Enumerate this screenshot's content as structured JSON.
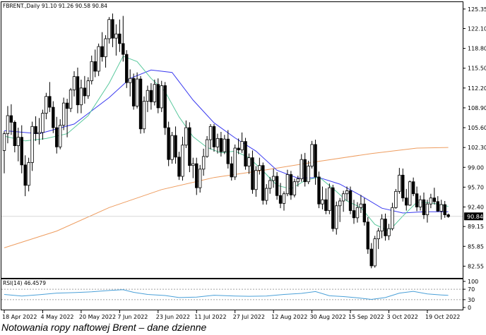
{
  "caption": "Notowania ropy naftowej Brent – dane dzienne",
  "chart_data": {
    "type": "candlestick",
    "header": "FBRENT.,Daily  91.10 91.26 90.58 90.84",
    "y_ticks": [
      "125.35",
      "122.10",
      "118.80",
      "115.50",
      "112.20",
      "108.90",
      "105.60",
      "102.30",
      "99.00",
      "95.70",
      "92.40",
      "89.15",
      "85.85",
      "82.55"
    ],
    "ylim": [
      80.6,
      126.5
    ],
    "last_price": "90.84",
    "x_labels": [
      "18 Apr 2022",
      "4 May 2022",
      "20 May 2022",
      "7 Jun 2022",
      "23 Jun 2022",
      "11 Jul 2022",
      "27 Jul 2022",
      "12 Aug 2022",
      "30 Aug 2022",
      "15 Sep 2022",
      "3 Oct 2022",
      "19 Oct 2022"
    ],
    "x_label_bars": [
      0,
      11,
      22,
      33,
      44,
      55,
      66,
      77,
      88,
      99,
      110,
      121
    ],
    "candles": [
      [
        101.8,
        105,
        98,
        104.6
      ],
      [
        104.6,
        109.2,
        103,
        107.6
      ],
      [
        107.6,
        109.5,
        104.4,
        106.5
      ],
      [
        106.5,
        106.8,
        101.5,
        102.6
      ],
      [
        102.6,
        105.6,
        100,
        104
      ],
      [
        104,
        106,
        98,
        99.4
      ],
      [
        99.4,
        101,
        94.2,
        96
      ],
      [
        96,
        100.6,
        95,
        99.8
      ],
      [
        99.8,
        106.6,
        98.4,
        105.8
      ],
      [
        105.8,
        107.5,
        103.4,
        104.6
      ],
      [
        104.6,
        107.2,
        102.8,
        104.8
      ],
      [
        104.8,
        108.6,
        103.6,
        108
      ],
      [
        108,
        111.4,
        107,
        110.8
      ],
      [
        110.8,
        113.2,
        108.2,
        109
      ],
      [
        109,
        110,
        104.7,
        105.6
      ],
      [
        105.6,
        107.4,
        101.3,
        102.4
      ],
      [
        102.4,
        107,
        102,
        106
      ],
      [
        106,
        110.6,
        105.2,
        109.7
      ],
      [
        109.7,
        110.4,
        104,
        108.8
      ],
      [
        108.8,
        112.2,
        108.2,
        111.9
      ],
      [
        111.9,
        115,
        110.8,
        114.1
      ],
      [
        114.1,
        115.6,
        108,
        109.4
      ],
      [
        109.4,
        113.6,
        108,
        112.2
      ],
      [
        112.2,
        114.2,
        109.6,
        110.9
      ],
      [
        110.9,
        114,
        110.4,
        113.4
      ],
      [
        113.4,
        117.6,
        112.8,
        116.6
      ],
      [
        116.6,
        118.6,
        114,
        115
      ],
      [
        115,
        119.6,
        114.2,
        119.1
      ],
      [
        119.1,
        121.5,
        116.6,
        117.4
      ],
      [
        117.4,
        121,
        115.6,
        120.4
      ],
      [
        120.4,
        124,
        119.6,
        123.6
      ],
      [
        123.6,
        124.6,
        119,
        120.5
      ],
      [
        120.5,
        122.8,
        117.6,
        121.2
      ],
      [
        121.2,
        123.6,
        118.2,
        119.6
      ],
      [
        119.6,
        124.2,
        116.6,
        117.8
      ],
      [
        117.8,
        118.5,
        112.2,
        113.1
      ],
      [
        113.1,
        115.3,
        110.8,
        113.8
      ],
      [
        113.8,
        114.6,
        108.6,
        109.2
      ],
      [
        109.2,
        114.8,
        108.8,
        113.7
      ],
      [
        113.7,
        114.2,
        104.6,
        105.4
      ],
      [
        105.4,
        110.8,
        104.7,
        110
      ],
      [
        110,
        112.6,
        108.2,
        111.8
      ],
      [
        111.8,
        113,
        108.6,
        109.9
      ],
      [
        109.9,
        113.6,
        109.3,
        112.8
      ],
      [
        112.8,
        113.8,
        108,
        108.9
      ],
      [
        108.9,
        113.4,
        108.2,
        112.6
      ],
      [
        112.6,
        113.2,
        104.4,
        105.6
      ],
      [
        105.6,
        106.6,
        99.2,
        100.3
      ],
      [
        100.3,
        104.9,
        99.6,
        104.3
      ],
      [
        104.3,
        105.8,
        99.6,
        100.7
      ],
      [
        100.7,
        101.6,
        96.9,
        97.5
      ],
      [
        97.5,
        104.1,
        96.8,
        102.7
      ],
      [
        102.7,
        106.8,
        102.2,
        105.6
      ],
      [
        105.6,
        106.5,
        98.2,
        99.3
      ],
      [
        99.3,
        100.6,
        97.2,
        99.6
      ],
      [
        99.6,
        100.6,
        94.4,
        95.6
      ],
      [
        95.6,
        99.4,
        94.8,
        98.7
      ],
      [
        98.7,
        102.1,
        97.6,
        100.8
      ],
      [
        100.8,
        104.2,
        100.6,
        103.6
      ],
      [
        103.6,
        106.2,
        102,
        105.8
      ],
      [
        105.8,
        106.2,
        101.6,
        102.4
      ],
      [
        102.4,
        104.6,
        101.3,
        103.8
      ],
      [
        103.8,
        104.9,
        100.8,
        101.6
      ],
      [
        101.6,
        104.4,
        101.2,
        103.7
      ],
      [
        103.7,
        105.2,
        98.8,
        99.6
      ],
      [
        99.6,
        100.8,
        96.8,
        97.4
      ],
      [
        97.4,
        102.8,
        96.9,
        102.2
      ],
      [
        102.2,
        103.8,
        101.2,
        101.9
      ],
      [
        101.9,
        104.8,
        101.4,
        103.3
      ],
      [
        103.3,
        103.9,
        98.6,
        99.2
      ],
      [
        99.2,
        101.3,
        97.9,
        100.6
      ],
      [
        100.6,
        101.8,
        94.6,
        95.3
      ],
      [
        95.3,
        99.2,
        94.1,
        98.5
      ],
      [
        98.5,
        100.6,
        97.8,
        99.3
      ],
      [
        99.3,
        99.8,
        92.8,
        93.5
      ],
      [
        93.5,
        96.2,
        92.8,
        95.5
      ],
      [
        95.5,
        97.4,
        94.6,
        96.8
      ],
      [
        96.8,
        98.8,
        95.6,
        97.5
      ],
      [
        97.5,
        98.2,
        93.6,
        94.3
      ],
      [
        94.3,
        96.4,
        92.2,
        93
      ],
      [
        93,
        95,
        91.8,
        94.6
      ],
      [
        94.6,
        98.6,
        94.2,
        97.8
      ],
      [
        97.8,
        98.4,
        93.6,
        94.4
      ],
      [
        94.4,
        97.1,
        94,
        96.6
      ],
      [
        96.6,
        97.6,
        95.8,
        97.1
      ],
      [
        97.1,
        101.2,
        96.6,
        100.3
      ],
      [
        100.3,
        101.4,
        95.8,
        96.6
      ],
      [
        96.6,
        100.1,
        96.2,
        99.2
      ],
      [
        99.2,
        103.4,
        98.8,
        102.8
      ],
      [
        102.8,
        103.6,
        96.1,
        97.4
      ],
      [
        97.4,
        98.3,
        92.2,
        92.9
      ],
      [
        92.9,
        95.8,
        92,
        93.6
      ],
      [
        93.6,
        95.5,
        91.2,
        91.8
      ],
      [
        91.8,
        96.3,
        91.2,
        95.6
      ],
      [
        95.6,
        96.1,
        88.3,
        88.8
      ],
      [
        88.8,
        93.3,
        87.8,
        92.6
      ],
      [
        92.6,
        93.9,
        89.9,
        93.4
      ],
      [
        93.4,
        95.1,
        91.6,
        94.6
      ],
      [
        94.6,
        95.8,
        93.4,
        95.1
      ],
      [
        95.1,
        95.8,
        91.2,
        91.8
      ],
      [
        91.8,
        93.6,
        89.6,
        90.6
      ],
      [
        90.6,
        93.2,
        89.8,
        92.3
      ],
      [
        92.3,
        94.4,
        91.4,
        92.9
      ],
      [
        92.9,
        93.9,
        89.3,
        89.9
      ],
      [
        89.9,
        90.7,
        84.6,
        85.4
      ],
      [
        85.4,
        86.4,
        82.2,
        82.6
      ],
      [
        82.6,
        87.6,
        82.3,
        87.1
      ],
      [
        87.1,
        88.9,
        85.4,
        88.4
      ],
      [
        88.4,
        91.2,
        87.2,
        90.4
      ],
      [
        90.4,
        91.3,
        86.8,
        87.6
      ],
      [
        87.6,
        89.6,
        86.9,
        88.8
      ],
      [
        88.8,
        93.1,
        88.5,
        92.3
      ],
      [
        92.3,
        95.4,
        92.1,
        95
      ],
      [
        95,
        98.9,
        94.6,
        97.7
      ],
      [
        97.7,
        98.8,
        93.3,
        93.9
      ],
      [
        93.9,
        95.4,
        91.8,
        92.7
      ],
      [
        92.7,
        96.8,
        92.6,
        96.6
      ],
      [
        96.6,
        97.3,
        94.2,
        94.6
      ],
      [
        94.6,
        95.8,
        91.7,
        92.4
      ],
      [
        92.4,
        94.3,
        91.8,
        93.6
      ],
      [
        93.6,
        94.8,
        90.4,
        91.1
      ],
      [
        91.1,
        93.6,
        89.8,
        92.9
      ],
      [
        92.9,
        94.6,
        92.2,
        93.9
      ],
      [
        93.9,
        95.6,
        92.8,
        93.3
      ],
      [
        93.3,
        94.2,
        91.6,
        91.7
      ],
      [
        91.7,
        93.6,
        90.3,
        92.8
      ],
      [
        92.8,
        93.4,
        90.6,
        91.1
      ],
      [
        91.1,
        91.3,
        90.6,
        90.8
      ]
    ],
    "bull_color": "#ffffff",
    "bear_color": "#000000",
    "ma_fast": {
      "color": "#58c89c",
      "values": [
        [
          0,
          104.2
        ],
        [
          6,
          103.4
        ],
        [
          12,
          103.8
        ],
        [
          18,
          104.6
        ],
        [
          24,
          107.6
        ],
        [
          30,
          113
        ],
        [
          34,
          117.5
        ],
        [
          38,
          116.6
        ],
        [
          42,
          113.8
        ],
        [
          46,
          111.6
        ],
        [
          50,
          107.4
        ],
        [
          54,
          104.1
        ],
        [
          58,
          102.3
        ],
        [
          62,
          101.4
        ],
        [
          66,
          101.7
        ],
        [
          70,
          100.6
        ],
        [
          74,
          98.4
        ],
        [
          78,
          96
        ],
        [
          82,
          95.4
        ],
        [
          86,
          96.8
        ],
        [
          90,
          97.4
        ],
        [
          94,
          95.5
        ],
        [
          98,
          93.4
        ],
        [
          102,
          92.3
        ],
        [
          106,
          89.5
        ],
        [
          110,
          88.4
        ],
        [
          114,
          90.9
        ],
        [
          118,
          93.2
        ],
        [
          122,
          93.1
        ],
        [
          127,
          92.5
        ]
      ]
    },
    "ma_mid": {
      "color": "#3a3af0",
      "values": [
        [
          0,
          105.1
        ],
        [
          10,
          104.6
        ],
        [
          20,
          106.2
        ],
        [
          30,
          110.6
        ],
        [
          36,
          113.8
        ],
        [
          42,
          115.2
        ],
        [
          48,
          114.8
        ],
        [
          54,
          110.2
        ],
        [
          60,
          106.4
        ],
        [
          66,
          103.9
        ],
        [
          72,
          101.7
        ],
        [
          78,
          98.5
        ],
        [
          84,
          97.2
        ],
        [
          90,
          97.3
        ],
        [
          96,
          96.2
        ],
        [
          102,
          94.3
        ],
        [
          108,
          92.2
        ],
        [
          114,
          91.4
        ],
        [
          120,
          91.6
        ],
        [
          127,
          91.6
        ]
      ]
    },
    "ma_slow": {
      "color": "#ee9d60",
      "values": [
        [
          0,
          85.6
        ],
        [
          15,
          88.4
        ],
        [
          30,
          92.3
        ],
        [
          45,
          95.3
        ],
        [
          60,
          97.3
        ],
        [
          75,
          98.6
        ],
        [
          90,
          100
        ],
        [
          105,
          101.3
        ],
        [
          118,
          102.2
        ],
        [
          127,
          102.3
        ]
      ]
    },
    "rsi": {
      "label": "RSI(14) 46.4579",
      "ticks": [
        "100",
        "70",
        "30",
        "0"
      ],
      "color": "#4aa0d8",
      "values": [
        [
          0,
          50
        ],
        [
          5,
          44
        ],
        [
          10,
          49
        ],
        [
          15,
          55
        ],
        [
          20,
          57
        ],
        [
          25,
          60
        ],
        [
          30,
          65
        ],
        [
          34,
          68
        ],
        [
          37,
          58
        ],
        [
          41,
          50
        ],
        [
          46,
          46
        ],
        [
          50,
          38
        ],
        [
          55,
          40
        ],
        [
          60,
          47
        ],
        [
          66,
          44
        ],
        [
          70,
          43
        ],
        [
          75,
          44
        ],
        [
          80,
          50
        ],
        [
          85,
          54
        ],
        [
          89,
          61
        ],
        [
          93,
          45
        ],
        [
          97,
          42
        ],
        [
          101,
          37
        ],
        [
          105,
          31
        ],
        [
          109,
          38
        ],
        [
          113,
          55
        ],
        [
          117,
          62
        ],
        [
          121,
          52
        ],
        [
          125,
          48
        ],
        [
          127,
          46.5
        ]
      ]
    }
  }
}
